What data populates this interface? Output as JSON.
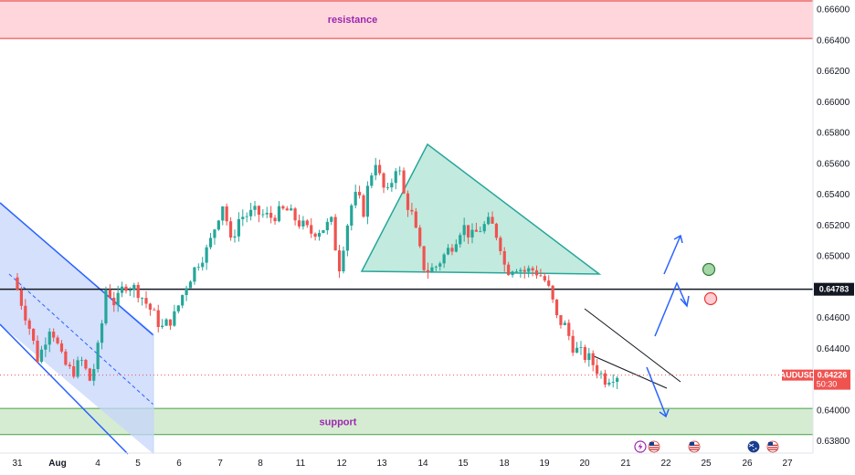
{
  "chart_data": {
    "type": "candlestick",
    "symbol": "AUDUSD",
    "last_price": "0.64226",
    "countdown": "50:30",
    "horizontal_level": "0.64783",
    "ylim": [
      0.6372,
      0.6666
    ],
    "y_ticks": [
      "0.66600",
      "0.66400",
      "0.66200",
      "0.66000",
      "0.65800",
      "0.65600",
      "0.65400",
      "0.65200",
      "0.65000",
      "0.64800",
      "0.64600",
      "0.64400",
      "0.64200",
      "0.64000",
      "0.63800"
    ],
    "x_ticks": [
      "31",
      "Aug",
      "4",
      "5",
      "6",
      "7",
      "8",
      "11",
      "12",
      "13",
      "14",
      "15",
      "18",
      "19",
      "20",
      "21",
      "22",
      "25",
      "26",
      "27"
    ],
    "zones": {
      "resistance": {
        "label": "resistance",
        "from": 0.6641,
        "to": 0.6666
      },
      "support": {
        "label": "support",
        "from": 0.6384,
        "to": 0.6401
      }
    },
    "price_path": [
      {
        "x": 0,
        "y": 0.6486
      },
      {
        "x": 0.5,
        "y": 0.6455
      },
      {
        "x": 0.8,
        "y": 0.6432
      },
      {
        "x": 1.2,
        "y": 0.6456
      },
      {
        "x": 1.6,
        "y": 0.6431
      },
      {
        "x": 1.9,
        "y": 0.6424
      },
      {
        "x": 2.2,
        "y": 0.6432
      },
      {
        "x": 2.5,
        "y": 0.6418
      },
      {
        "x": 2.8,
        "y": 0.6446
      },
      {
        "x": 3.0,
        "y": 0.648
      },
      {
        "x": 3.3,
        "y": 0.6468
      },
      {
        "x": 3.6,
        "y": 0.6482
      },
      {
        "x": 4.0,
        "y": 0.6478
      },
      {
        "x": 4.4,
        "y": 0.6466
      },
      {
        "x": 4.8,
        "y": 0.6453
      },
      {
        "x": 5.2,
        "y": 0.6461
      },
      {
        "x": 5.6,
        "y": 0.6482
      },
      {
        "x": 6.0,
        "y": 0.6497
      },
      {
        "x": 6.3,
        "y": 0.6505
      },
      {
        "x": 6.6,
        "y": 0.6525
      },
      {
        "x": 6.8,
        "y": 0.6536
      },
      {
        "x": 7.0,
        "y": 0.6507
      },
      {
        "x": 7.3,
        "y": 0.6525
      },
      {
        "x": 7.8,
        "y": 0.6528
      },
      {
        "x": 8.3,
        "y": 0.6525
      },
      {
        "x": 8.8,
        "y": 0.653
      },
      {
        "x": 9.2,
        "y": 0.6522
      },
      {
        "x": 9.6,
        "y": 0.6515
      },
      {
        "x": 10.0,
        "y": 0.6518
      },
      {
        "x": 10.3,
        "y": 0.6522
      },
      {
        "x": 10.5,
        "y": 0.649
      },
      {
        "x": 10.7,
        "y": 0.6512
      },
      {
        "x": 10.9,
        "y": 0.6532
      },
      {
        "x": 11.1,
        "y": 0.654
      },
      {
        "x": 11.3,
        "y": 0.6528
      },
      {
        "x": 11.5,
        "y": 0.655
      },
      {
        "x": 11.7,
        "y": 0.6562
      },
      {
        "x": 11.9,
        "y": 0.6545
      },
      {
        "x": 12.1,
        "y": 0.654
      },
      {
        "x": 12.4,
        "y": 0.6562
      },
      {
        "x": 12.6,
        "y": 0.654
      },
      {
        "x": 12.9,
        "y": 0.6525
      },
      {
        "x": 13.1,
        "y": 0.6505
      },
      {
        "x": 13.3,
        "y": 0.649
      },
      {
        "x": 13.6,
        "y": 0.6492
      },
      {
        "x": 13.9,
        "y": 0.65
      },
      {
        "x": 14.2,
        "y": 0.6508
      },
      {
        "x": 14.5,
        "y": 0.652
      },
      {
        "x": 14.8,
        "y": 0.6512
      },
      {
        "x": 15.1,
        "y": 0.6518
      },
      {
        "x": 15.4,
        "y": 0.6522
      },
      {
        "x": 15.7,
        "y": 0.651
      },
      {
        "x": 15.9,
        "y": 0.649
      },
      {
        "x": 16.2,
        "y": 0.6494
      },
      {
        "x": 16.5,
        "y": 0.649
      },
      {
        "x": 16.8,
        "y": 0.6491
      },
      {
        "x": 17.0,
        "y": 0.6488
      },
      {
        "x": 17.2,
        "y": 0.6483
      },
      {
        "x": 17.4,
        "y": 0.6472
      },
      {
        "x": 17.5,
        "y": 0.646
      },
      {
        "x": 17.8,
        "y": 0.6455
      },
      {
        "x": 18.1,
        "y": 0.644
      },
      {
        "x": 18.3,
        "y": 0.6437
      },
      {
        "x": 18.6,
        "y": 0.6433
      },
      {
        "x": 18.9,
        "y": 0.6425
      },
      {
        "x": 19.1,
        "y": 0.642
      },
      {
        "x": 19.4,
        "y": 0.6423
      }
    ]
  },
  "tags": {
    "price_tag": "0.64783",
    "symbol_tag": "AUDUSD",
    "last_tag": "0.64226",
    "countdown_tag": "50:30"
  },
  "colors": {
    "up": "#26a69a",
    "down": "#ef5350",
    "resistance_fill": "#ffd6dc",
    "resistance_line": "#e53935",
    "support_fill": "#d6ecd2",
    "support_line": "#43a047",
    "channel_fill": "#c5d5fb",
    "channel_line": "#2962ff",
    "triangle_fill": "#b8e6d8",
    "triangle_line": "#26a69a",
    "arrow": "#2962ff"
  },
  "events": [
    "lightning-icon",
    "us-flag-icon",
    "us-flag-icon",
    "au-flag-icon",
    "us-flag-icon"
  ]
}
